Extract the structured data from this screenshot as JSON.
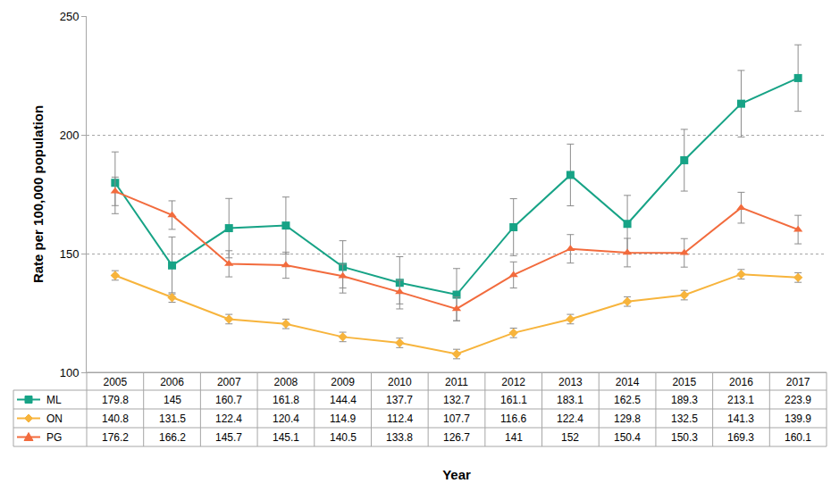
{
  "chart_data": {
    "type": "line",
    "x_label": "Year",
    "y_label": "Rate per 100,000 population",
    "categories": [
      "2005",
      "2006",
      "2007",
      "2008",
      "2009",
      "2010",
      "2011",
      "2012",
      "2013",
      "2014",
      "2015",
      "2016",
      "2017"
    ],
    "ylim": [
      100,
      250
    ],
    "yticks": [
      100,
      150,
      200,
      250
    ],
    "grid": true,
    "series": [
      {
        "name": "ML",
        "color": "#17a386",
        "marker": "square",
        "values": [
          179.8,
          145,
          160.7,
          161.8,
          144.4,
          137.7,
          132.7,
          161.1,
          183.1,
          162.5,
          189.3,
          213.1,
          223.9
        ],
        "errors": [
          13,
          12,
          12.5,
          12,
          11,
          11,
          11,
          12,
          13,
          12,
          13,
          14,
          14
        ]
      },
      {
        "name": "ON",
        "color": "#f7b43c",
        "marker": "diamond",
        "values": [
          140.8,
          131.5,
          122.4,
          120.4,
          114.9,
          112.4,
          107.7,
          116.6,
          122.4,
          129.8,
          132.5,
          141.3,
          139.9
        ],
        "errors": [
          2,
          2,
          2,
          2,
          2,
          2,
          2,
          2,
          2,
          2,
          2,
          2,
          2
        ]
      },
      {
        "name": "PG",
        "color": "#f26b3d",
        "marker": "triangle-up",
        "values": [
          176.2,
          166.2,
          145.7,
          145.1,
          140.5,
          133.8,
          126.7,
          141,
          152,
          150.4,
          150.3,
          169.3,
          160.1
        ],
        "errors": [
          6,
          6,
          5.5,
          5.5,
          5,
          5,
          5,
          5.5,
          6,
          6,
          6,
          6.5,
          6
        ]
      }
    ]
  }
}
